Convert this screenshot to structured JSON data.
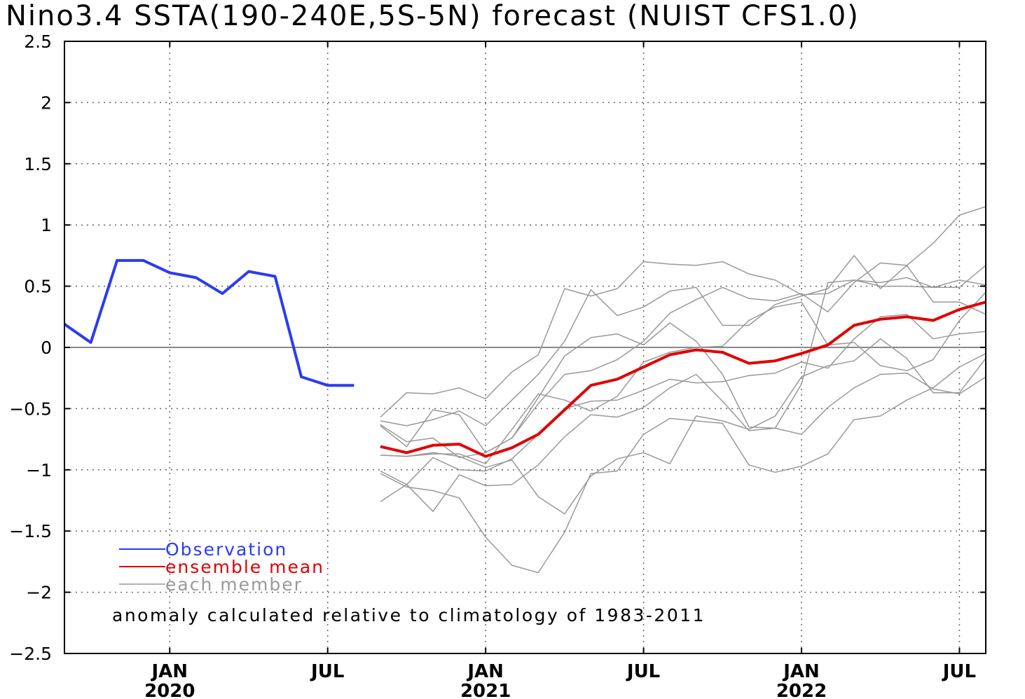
{
  "chart_data": {
    "type": "line",
    "title": "Nino3.4 SSTA(190-240E,5S-5N) forecast (NUIST CFS1.0)",
    "ylim": [
      -2.5,
      2.5
    ],
    "yticks": [
      -2.5,
      -2,
      -1.5,
      -1,
      -0.5,
      0,
      0.5,
      1,
      1.5,
      2,
      2.5
    ],
    "ytick_labels": [
      "-2.5",
      "-2",
      "-1.5",
      "-1",
      "-0.5",
      "0",
      "0.5",
      "1",
      "1.5",
      "2",
      "2.5"
    ],
    "xlim": [
      "2019-09",
      "2022-08"
    ],
    "xticks": [
      {
        "date": "2020-01",
        "label": "JAN",
        "year": "2020"
      },
      {
        "date": "2020-07",
        "label": "JUL",
        "year": ""
      },
      {
        "date": "2021-01",
        "label": "JAN",
        "year": "2021"
      },
      {
        "date": "2021-07",
        "label": "JUL",
        "year": ""
      },
      {
        "date": "2022-01",
        "label": "JAN",
        "year": "2022"
      },
      {
        "date": "2022-07",
        "label": "JUL",
        "year": ""
      }
    ],
    "grid": true,
    "zero_line": true,
    "legend": {
      "placement": "bottom-left",
      "entries": [
        {
          "label": "Observation",
          "color": "#2a3cf0"
        },
        {
          "label": "ensemble mean",
          "color": "#e00000"
        },
        {
          "label": "each member",
          "color": "#999999"
        }
      ]
    },
    "annotation": "anomaly calculated relative to climatology of 1983-2011",
    "series": [
      {
        "role": "observation",
        "color": "#2a3cf0",
        "x": [
          "2019-09",
          "2019-10",
          "2019-11",
          "2019-12",
          "2020-01",
          "2020-02",
          "2020-03",
          "2020-04",
          "2020-05",
          "2020-06",
          "2020-07",
          "2020-08"
        ],
        "values": [
          0.19,
          0.04,
          0.71,
          0.71,
          0.61,
          0.57,
          0.44,
          0.62,
          0.58,
          -0.24,
          -0.31,
          -0.31
        ]
      },
      {
        "role": "ensemble mean",
        "color": "#e00000",
        "x": [
          "2020-09",
          "2020-10",
          "2020-11",
          "2020-12",
          "2021-01",
          "2021-02",
          "2021-03",
          "2021-04",
          "2021-05",
          "2021-06",
          "2021-07",
          "2021-08",
          "2021-09",
          "2021-10",
          "2021-11",
          "2021-12",
          "2022-01",
          "2022-02",
          "2022-03",
          "2022-04",
          "2022-05",
          "2022-06",
          "2022-07",
          "2022-08"
        ],
        "values": [
          -0.81,
          -0.86,
          -0.8,
          -0.79,
          -0.89,
          -0.82,
          -0.71,
          -0.51,
          -0.31,
          -0.26,
          -0.16,
          -0.06,
          -0.02,
          -0.04,
          -0.13,
          -0.11,
          -0.05,
          0.02,
          0.18,
          0.23,
          0.25,
          0.22,
          0.31,
          0.37
        ]
      },
      {
        "role": "member",
        "color": "#999999",
        "x": [
          "2020-09",
          "2020-10",
          "2020-11",
          "2020-12",
          "2021-01",
          "2021-02",
          "2021-03",
          "2021-04",
          "2021-05",
          "2021-06",
          "2021-07",
          "2021-08",
          "2021-09",
          "2021-10",
          "2021-11",
          "2021-12",
          "2022-01",
          "2022-02",
          "2022-03",
          "2022-04",
          "2022-05",
          "2022-06",
          "2022-07",
          "2022-08"
        ],
        "values": [
          -0.57,
          -0.37,
          -0.38,
          -0.33,
          -0.42,
          -0.2,
          -0.06,
          0.48,
          0.42,
          0.48,
          0.7,
          0.68,
          0.67,
          0.7,
          0.6,
          0.55,
          0.43,
          0.44,
          0.55,
          0.53,
          0.57,
          0.49,
          0.55,
          0.51
        ]
      },
      {
        "role": "member",
        "color": "#999999",
        "x": [
          "2020-09",
          "2020-10",
          "2020-11",
          "2020-12",
          "2021-01",
          "2021-02",
          "2021-03",
          "2021-04",
          "2021-05",
          "2021-06",
          "2021-07",
          "2021-08",
          "2021-09",
          "2021-10",
          "2021-11",
          "2021-12",
          "2022-01",
          "2022-02",
          "2022-03",
          "2022-04",
          "2022-05",
          "2022-06",
          "2022-07",
          "2022-08"
        ],
        "values": [
          -0.6,
          -0.64,
          -0.59,
          -0.52,
          -0.64,
          -0.43,
          -0.22,
          0.05,
          0.47,
          0.26,
          0.33,
          0.46,
          0.49,
          0.18,
          0.18,
          0.35,
          0.42,
          0.48,
          0.75,
          0.48,
          0.67,
          0.37,
          0.37,
          0.27
        ]
      },
      {
        "role": "member",
        "color": "#999999",
        "x": [
          "2020-09",
          "2020-10",
          "2020-11",
          "2020-12",
          "2021-01",
          "2021-02",
          "2021-03",
          "2021-04",
          "2021-05",
          "2021-06",
          "2021-07",
          "2021-08",
          "2021-09",
          "2021-10",
          "2021-11",
          "2021-12",
          "2022-01",
          "2022-02",
          "2022-03",
          "2022-04",
          "2022-05",
          "2022-06",
          "2022-07",
          "2022-08"
        ],
        "values": [
          -0.63,
          -0.77,
          -0.74,
          -0.9,
          -0.86,
          -0.74,
          -0.46,
          -0.22,
          -0.19,
          -0.1,
          0.05,
          0.28,
          0.39,
          0.49,
          0.4,
          0.38,
          0.44,
          0.29,
          0.53,
          0.69,
          0.67,
          0.85,
          1.08,
          1.15
        ]
      },
      {
        "role": "member",
        "color": "#999999",
        "x": [
          "2020-09",
          "2020-10",
          "2020-11",
          "2020-12",
          "2021-01",
          "2021-02",
          "2021-03",
          "2021-04",
          "2021-05",
          "2021-06",
          "2021-07",
          "2021-08",
          "2021-09",
          "2021-10",
          "2021-11",
          "2021-12",
          "2022-01",
          "2022-02",
          "2022-03",
          "2022-04",
          "2022-05",
          "2022-06",
          "2022-07",
          "2022-08"
        ],
        "values": [
          -0.64,
          -0.81,
          -0.51,
          -0.55,
          -0.86,
          -0.74,
          -0.41,
          -0.07,
          0.08,
          0.11,
          0.02,
          0.2,
          0.05,
          -0.22,
          -0.65,
          -0.66,
          -0.3,
          0.53,
          0.55,
          0.5,
          0.5,
          0.49,
          0.49,
          0.67
        ]
      },
      {
        "role": "member",
        "color": "#999999",
        "x": [
          "2020-09",
          "2020-10",
          "2020-11",
          "2020-12",
          "2021-01",
          "2021-02",
          "2021-03",
          "2021-04",
          "2021-05",
          "2021-06",
          "2021-07",
          "2021-08",
          "2021-09",
          "2021-10",
          "2021-11",
          "2021-12",
          "2022-01",
          "2022-02",
          "2022-03",
          "2022-04",
          "2022-05",
          "2022-06",
          "2022-07",
          "2022-08"
        ],
        "values": [
          -0.88,
          -0.89,
          -0.87,
          -0.87,
          -0.95,
          -0.67,
          -0.38,
          -0.43,
          -0.52,
          -0.4,
          -0.12,
          -0.04,
          0.0,
          0.01,
          0.22,
          0.33,
          0.37,
          0.02,
          0.04,
          -0.15,
          -0.19,
          -0.1,
          0.22,
          0.45
        ]
      },
      {
        "role": "member",
        "color": "#999999",
        "x": [
          "2020-09",
          "2020-10",
          "2020-11",
          "2020-12",
          "2021-01",
          "2021-02",
          "2021-03",
          "2021-04",
          "2021-05",
          "2021-06",
          "2021-07",
          "2021-08",
          "2021-09",
          "2021-10",
          "2021-11",
          "2021-12",
          "2022-01",
          "2022-02",
          "2022-03",
          "2022-04",
          "2022-05",
          "2022-06",
          "2022-07",
          "2022-08"
        ],
        "values": [
          -1.01,
          -1.12,
          -0.9,
          -1.0,
          -1.01,
          -0.91,
          -0.71,
          -0.5,
          -0.44,
          -0.43,
          -0.35,
          -0.26,
          -0.29,
          -0.28,
          -0.23,
          -0.21,
          -0.12,
          -0.17,
          0.07,
          0.25,
          0.27,
          0.07,
          0.11,
          0.13
        ]
      },
      {
        "role": "member",
        "color": "#999999",
        "x": [
          "2020-09",
          "2020-10",
          "2020-11",
          "2020-12",
          "2021-01",
          "2021-02",
          "2021-03",
          "2021-04",
          "2021-05",
          "2021-06",
          "2021-07",
          "2021-08",
          "2021-09",
          "2021-10",
          "2021-11",
          "2021-12",
          "2022-01",
          "2022-02",
          "2022-03",
          "2022-04",
          "2022-05",
          "2022-06",
          "2022-07",
          "2022-08"
        ],
        "values": [
          -1.03,
          -1.14,
          -1.17,
          -1.23,
          -1.55,
          -1.78,
          -1.84,
          -1.51,
          -1.03,
          -1.01,
          -0.71,
          -0.58,
          -0.6,
          -0.62,
          -0.96,
          -1.02,
          -0.97,
          -0.87,
          -0.59,
          -0.56,
          -0.43,
          -0.33,
          -0.16,
          -0.05
        ]
      },
      {
        "role": "member",
        "color": "#999999",
        "x": [
          "2020-09",
          "2020-10",
          "2020-11",
          "2020-12",
          "2021-01",
          "2021-02",
          "2021-03",
          "2021-04",
          "2021-05",
          "2021-06",
          "2021-07",
          "2021-08",
          "2021-09",
          "2021-10",
          "2021-11",
          "2021-12",
          "2022-01",
          "2022-02",
          "2022-03",
          "2022-04",
          "2022-05",
          "2022-06",
          "2022-07",
          "2022-08"
        ],
        "values": [
          -1.26,
          -1.12,
          -1.34,
          -1.04,
          -1.13,
          -1.12,
          -0.96,
          -0.73,
          -0.55,
          -0.57,
          -0.49,
          -0.33,
          -0.22,
          -0.44,
          -0.68,
          -0.66,
          -0.71,
          -0.49,
          -0.33,
          -0.22,
          -0.21,
          -0.34,
          -0.38,
          -0.24
        ]
      },
      {
        "role": "member",
        "color": "#999999",
        "x": [
          "2020-09",
          "2020-10",
          "2020-11",
          "2020-12",
          "2021-01",
          "2021-02",
          "2021-03",
          "2021-04",
          "2021-05",
          "2021-06",
          "2021-07",
          "2021-08",
          "2021-09",
          "2021-10",
          "2021-11",
          "2021-12",
          "2022-01",
          "2022-02",
          "2022-03",
          "2022-04",
          "2022-05",
          "2022-06",
          "2022-07",
          "2022-08"
        ],
        "values": [
          -0.88,
          -0.89,
          -0.86,
          -0.89,
          -0.98,
          -0.92,
          -1.22,
          -1.36,
          -1.05,
          -0.91,
          -0.86,
          -0.95,
          -0.56,
          -0.6,
          -0.67,
          -0.56,
          -0.24,
          -0.15,
          -0.11,
          0.07,
          -0.09,
          -0.37,
          -0.37,
          -0.09
        ]
      }
    ]
  }
}
